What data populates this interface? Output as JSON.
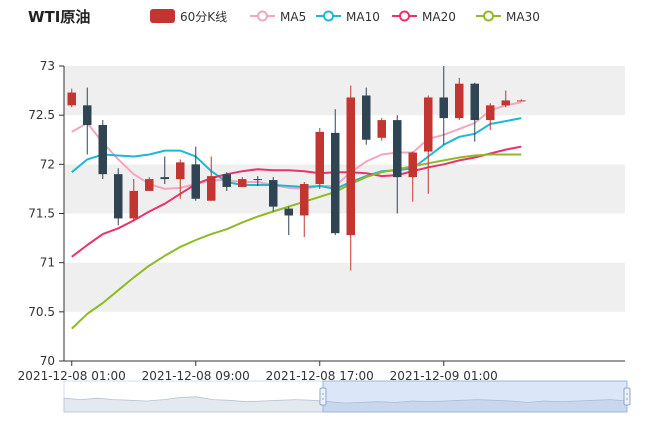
{
  "chart_data": {
    "type": "candlestick",
    "title": "WTI原油",
    "legend": [
      {
        "name": "60分K线",
        "color": "#c23531",
        "kind": "box"
      },
      {
        "name": "MA5",
        "color": "#f4a6c0",
        "kind": "line"
      },
      {
        "name": "MA10",
        "color": "#1fb7d6",
        "kind": "line"
      },
      {
        "name": "MA20",
        "color": "#e8336e",
        "kind": "line"
      },
      {
        "name": "MA30",
        "color": "#8fba23",
        "kind": "line"
      }
    ],
    "colors": {
      "up": "#c23531",
      "down": "#2f4554",
      "grid_band": "#efefef",
      "axis": "#333333"
    },
    "ylim": [
      70,
      73
    ],
    "y_ticks": [
      "70",
      "70.5",
      "71",
      "71.5",
      "72",
      "72.5",
      "73"
    ],
    "x_range": [
      0,
      29
    ],
    "x_ticks": [
      {
        "x": 0,
        "label": "2021-12-08 01:00"
      },
      {
        "x": 8,
        "label": "2021-12-08 09:00"
      },
      {
        "x": 16,
        "label": "2021-12-08 17:00"
      },
      {
        "x": 24,
        "label": "2021-12-09 01:00"
      }
    ],
    "candles": [
      {
        "x": 0,
        "open": 72.6,
        "close": 72.73,
        "low": 72.58,
        "high": 72.77
      },
      {
        "x": 1,
        "open": 72.6,
        "close": 72.4,
        "low": 72.1,
        "high": 72.78
      },
      {
        "x": 2,
        "open": 72.4,
        "close": 71.9,
        "low": 71.85,
        "high": 72.45
      },
      {
        "x": 3,
        "open": 71.9,
        "close": 71.45,
        "low": 71.38,
        "high": 71.96
      },
      {
        "x": 4,
        "open": 71.45,
        "close": 71.73,
        "low": 71.42,
        "high": 71.85
      },
      {
        "x": 5,
        "open": 71.73,
        "close": 71.85,
        "low": 71.73,
        "high": 71.87
      },
      {
        "x": 6,
        "open": 71.87,
        "close": 71.85,
        "low": 71.8,
        "high": 72.08
      },
      {
        "x": 7,
        "open": 71.85,
        "close": 72.02,
        "low": 71.65,
        "high": 72.05
      },
      {
        "x": 8,
        "open": 72.0,
        "close": 71.65,
        "low": 71.63,
        "high": 72.18
      },
      {
        "x": 9,
        "open": 71.63,
        "close": 71.88,
        "low": 71.63,
        "high": 72.08
      },
      {
        "x": 10,
        "open": 71.9,
        "close": 71.77,
        "low": 71.73,
        "high": 71.92
      },
      {
        "x": 11,
        "open": 71.77,
        "close": 71.85,
        "low": 71.77,
        "high": 71.87
      },
      {
        "x": 12,
        "open": 71.85,
        "close": 71.84,
        "low": 71.78,
        "high": 71.88
      },
      {
        "x": 13,
        "open": 71.84,
        "close": 71.57,
        "low": 71.52,
        "high": 71.87
      },
      {
        "x": 14,
        "open": 71.55,
        "close": 71.48,
        "low": 71.28,
        "high": 71.57
      },
      {
        "x": 15,
        "open": 71.48,
        "close": 71.8,
        "low": 71.26,
        "high": 71.82
      },
      {
        "x": 16,
        "open": 71.8,
        "close": 72.33,
        "low": 71.75,
        "high": 72.37
      },
      {
        "x": 17,
        "open": 72.32,
        "close": 71.3,
        "low": 71.28,
        "high": 72.56
      },
      {
        "x": 18,
        "open": 71.28,
        "close": 72.68,
        "low": 70.92,
        "high": 72.8
      },
      {
        "x": 19,
        "open": 72.7,
        "close": 72.25,
        "low": 72.2,
        "high": 72.78
      },
      {
        "x": 20,
        "open": 72.27,
        "close": 72.45,
        "low": 72.24,
        "high": 72.47
      },
      {
        "x": 21,
        "open": 72.45,
        "close": 71.87,
        "low": 71.5,
        "high": 72.5
      },
      {
        "x": 22,
        "open": 71.87,
        "close": 72.12,
        "low": 71.62,
        "high": 72.13
      },
      {
        "x": 23,
        "open": 72.13,
        "close": 72.68,
        "low": 71.7,
        "high": 72.7
      },
      {
        "x": 24,
        "open": 72.68,
        "close": 72.47,
        "low": 72.2,
        "high": 73.0
      },
      {
        "x": 25,
        "open": 72.47,
        "close": 72.82,
        "low": 72.45,
        "high": 72.88
      },
      {
        "x": 26,
        "open": 72.82,
        "close": 72.45,
        "low": 72.23,
        "high": 72.83
      },
      {
        "x": 27,
        "open": 72.45,
        "close": 72.6,
        "low": 72.35,
        "high": 72.62
      },
      {
        "x": 28,
        "open": 72.6,
        "close": 72.65,
        "low": 72.58,
        "high": 72.75
      },
      {
        "x": 29,
        "open": 72.65,
        "close": 72.65,
        "low": 72.64,
        "high": 72.66
      }
    ],
    "series": [
      {
        "name": "MA5",
        "x": [
          0,
          1,
          2,
          3,
          4,
          5,
          6,
          7,
          8,
          9,
          10,
          11,
          12,
          13,
          14,
          15,
          16,
          17,
          18,
          19,
          20,
          21,
          22,
          23,
          24,
          25,
          26,
          27,
          28,
          29
        ],
        "values": [
          72.33,
          72.42,
          72.22,
          72.05,
          71.9,
          71.8,
          71.75,
          71.76,
          71.8,
          71.84,
          71.84,
          71.82,
          71.82,
          71.79,
          71.76,
          71.75,
          71.78,
          71.78,
          71.92,
          72.03,
          72.1,
          72.12,
          72.12,
          72.26,
          72.3,
          72.36,
          72.42,
          72.55,
          72.6,
          72.63
        ]
      },
      {
        "name": "MA10",
        "x": [
          0,
          1,
          2,
          3,
          4,
          5,
          6,
          7,
          8,
          9,
          10,
          11,
          12,
          13,
          14,
          15,
          16,
          17,
          18,
          19,
          20,
          21,
          22,
          23,
          24,
          25,
          26,
          27,
          28,
          29
        ],
        "values": [
          71.92,
          72.05,
          72.1,
          72.09,
          72.08,
          72.1,
          72.14,
          72.14,
          72.08,
          71.93,
          71.82,
          71.79,
          71.79,
          71.79,
          71.78,
          71.77,
          71.78,
          71.75,
          71.82,
          71.88,
          71.93,
          71.94,
          71.96,
          72.08,
          72.2,
          72.28,
          72.31,
          72.41,
          72.44,
          72.47
        ]
      },
      {
        "name": "MA20",
        "x": [
          0,
          1,
          2,
          3,
          4,
          5,
          6,
          7,
          8,
          9,
          10,
          11,
          12,
          13,
          14,
          15,
          16,
          17,
          18,
          19,
          20,
          21,
          22,
          23,
          24,
          25,
          26,
          27,
          28,
          29
        ],
        "values": [
          71.06,
          71.18,
          71.29,
          71.35,
          71.43,
          71.52,
          71.6,
          71.7,
          71.8,
          71.86,
          71.9,
          71.93,
          71.95,
          71.94,
          71.94,
          71.93,
          71.91,
          71.92,
          71.92,
          71.91,
          71.88,
          71.89,
          71.93,
          71.97,
          72.0,
          72.04,
          72.07,
          72.11,
          72.15,
          72.18
        ]
      },
      {
        "name": "MA30",
        "x": [
          0,
          1,
          2,
          3,
          4,
          5,
          6,
          7,
          8,
          9,
          10,
          11,
          12,
          13,
          14,
          15,
          16,
          17,
          18,
          19,
          20,
          21,
          22,
          23,
          24,
          25,
          26,
          27,
          28,
          29
        ],
        "values": [
          70.33,
          70.48,
          70.59,
          70.72,
          70.85,
          70.97,
          71.07,
          71.16,
          71.23,
          71.29,
          71.34,
          71.41,
          71.47,
          71.52,
          71.57,
          71.62,
          71.67,
          71.72,
          71.8,
          71.87,
          71.92,
          71.95,
          71.98,
          72.01,
          72.04,
          72.07,
          72.09,
          72.1,
          72.1,
          72.1
        ]
      }
    ],
    "slider": {
      "window_start": 0.46,
      "window_end": 1.0
    },
    "overview": [
      0.7,
      0.6,
      0.7,
      0.6,
      0.55,
      0.5,
      0.6,
      0.75,
      0.8,
      0.6,
      0.55,
      0.45,
      0.5,
      0.55,
      0.6,
      0.55,
      0.45,
      0.35,
      0.4,
      0.45,
      0.4,
      0.5,
      0.45,
      0.5,
      0.55,
      0.6,
      0.55,
      0.5,
      0.4,
      0.5,
      0.45,
      0.5,
      0.55,
      0.6,
      0.5
    ]
  }
}
